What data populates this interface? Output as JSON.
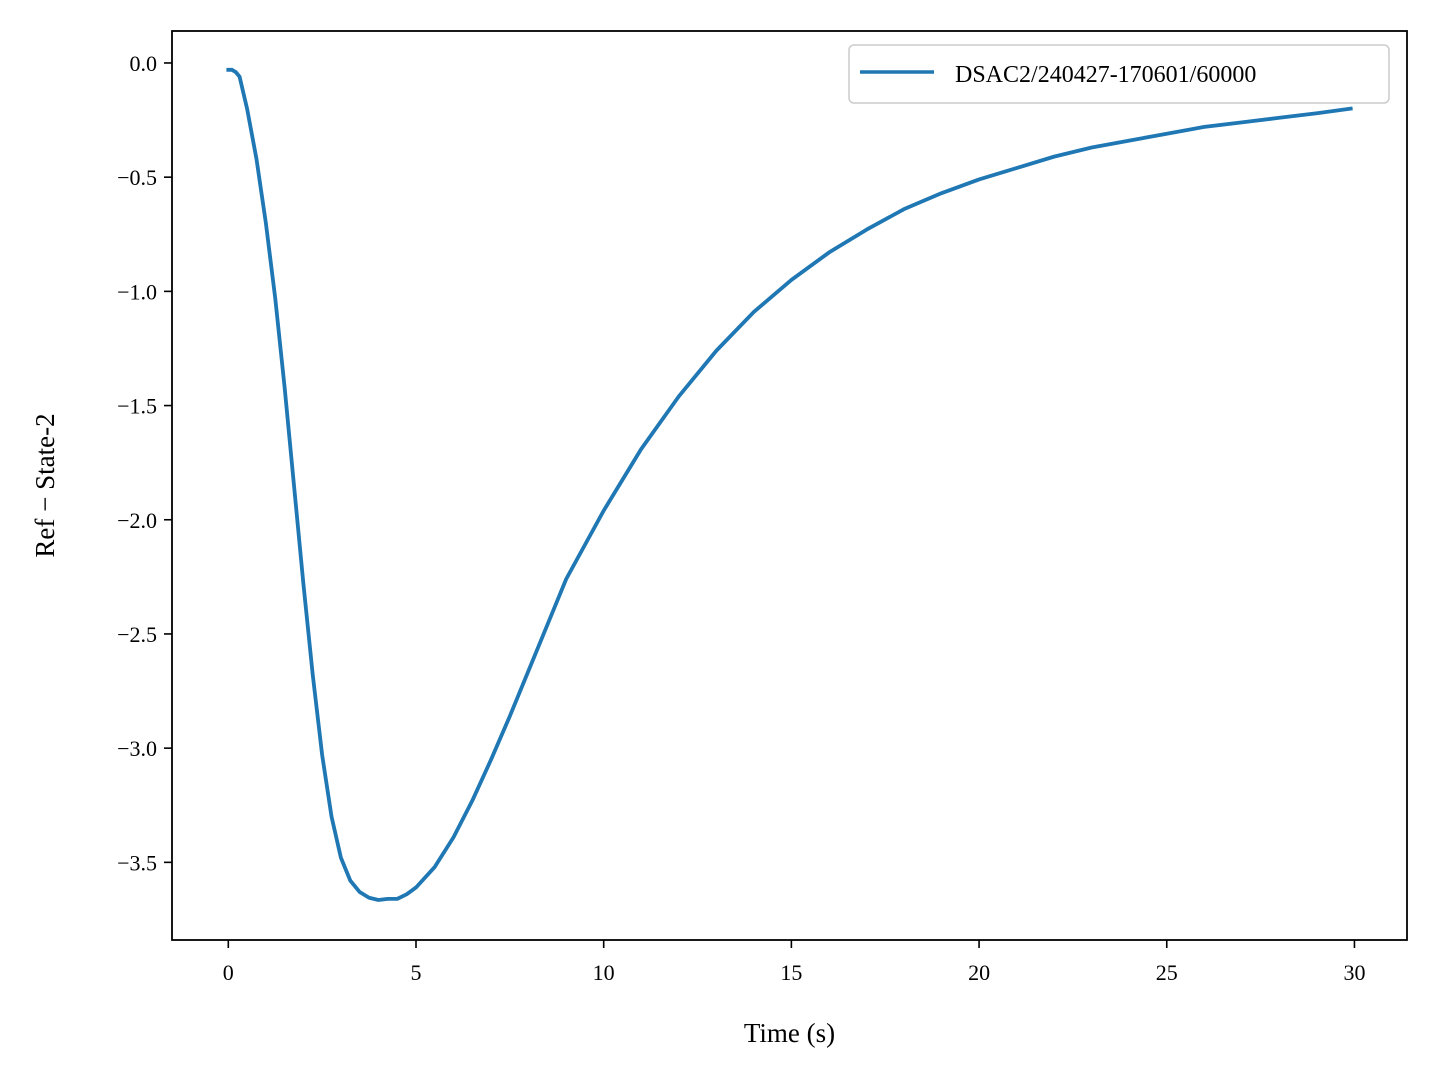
{
  "chart_data": {
    "type": "line",
    "xlabel": "Time (s)",
    "ylabel": "Ref − State-2",
    "xlim": [
      -1.5,
      31.4
    ],
    "ylim": [
      -3.84,
      0.14
    ],
    "xticks": [
      0,
      5,
      10,
      15,
      20,
      25,
      30
    ],
    "xtick_labels": [
      "0",
      "5",
      "10",
      "15",
      "20",
      "25",
      "30"
    ],
    "yticks": [
      0.0,
      -0.5,
      -1.0,
      -1.5,
      -2.0,
      -2.5,
      -3.0,
      -3.5
    ],
    "ytick_labels": [
      "0.0",
      "−0.5",
      "−1.0",
      "−1.5",
      "−2.0",
      "−2.5",
      "−3.0",
      "−3.5"
    ],
    "grid": false,
    "legend_position": "top-right",
    "series": [
      {
        "name": "DSAC2/240427-170601/60000",
        "color": "#1f77b4",
        "x": [
          0,
          0.1,
          0.2,
          0.3,
          0.5,
          0.75,
          1.0,
          1.25,
          1.5,
          1.75,
          2.0,
          2.25,
          2.5,
          2.75,
          3.0,
          3.25,
          3.5,
          3.75,
          4.0,
          4.25,
          4.5,
          4.75,
          5.0,
          5.5,
          6.0,
          6.5,
          7.0,
          7.5,
          8.0,
          8.5,
          9.0,
          10.0,
          11.0,
          12.0,
          13.0,
          14.0,
          15.0,
          16.0,
          17.0,
          18.0,
          19.0,
          20.0,
          21.0,
          22.0,
          23.0,
          24.0,
          25.0,
          26.0,
          27.0,
          28.0,
          29.0,
          29.9
        ],
        "y": [
          -0.03,
          -0.03,
          -0.04,
          -0.06,
          -0.2,
          -0.42,
          -0.7,
          -1.03,
          -1.42,
          -1.85,
          -2.28,
          -2.68,
          -3.03,
          -3.3,
          -3.48,
          -3.58,
          -3.63,
          -3.655,
          -3.665,
          -3.66,
          -3.66,
          -3.64,
          -3.61,
          -3.52,
          -3.39,
          -3.23,
          -3.05,
          -2.86,
          -2.66,
          -2.46,
          -2.26,
          -1.96,
          -1.69,
          -1.46,
          -1.26,
          -1.09,
          -0.95,
          -0.83,
          -0.73,
          -0.64,
          -0.57,
          -0.51,
          -0.46,
          -0.41,
          -0.37,
          -0.34,
          -0.31,
          -0.28,
          -0.26,
          -0.24,
          -0.22,
          -0.2
        ]
      }
    ]
  }
}
